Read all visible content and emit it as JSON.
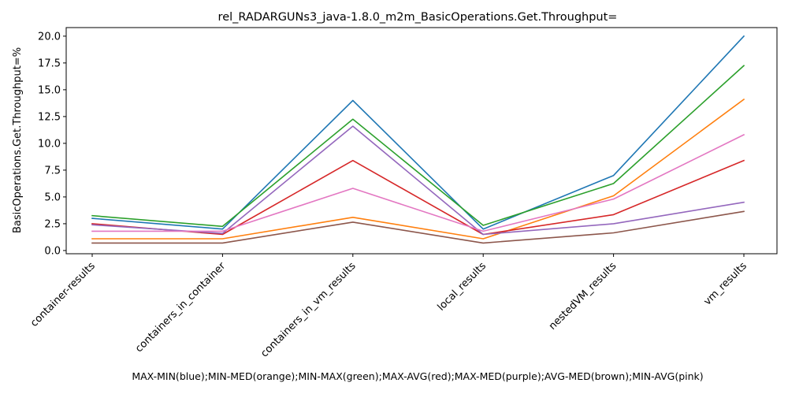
{
  "chart_data": {
    "type": "line",
    "title": "rel_RADARGUNs3_java-1.8.0_m2m_BasicOperations.Get.Throughput=",
    "xlabel": "MAX-MIN(blue);MIN-MED(orange);MIN-MAX(green);MAX-AVG(red);MAX-MED(purple);AVG-MED(brown);MIN-AVG(pink)",
    "ylabel": "BasicOperations.Get.Throughput=%",
    "categories": [
      "container-results",
      "containers_in_container",
      "containers_in_vm_results",
      "local_results",
      "nestedVM_results",
      "vm_results"
    ],
    "ylim": [
      -0.3,
      20.8
    ],
    "yticks": [
      "0.0",
      "2.5",
      "5.0",
      "7.5",
      "10.0",
      "12.5",
      "15.0",
      "17.5",
      "20.0"
    ],
    "ytick_values": [
      0,
      2.5,
      5,
      7.5,
      10,
      12.5,
      15,
      17.5,
      20
    ],
    "grid": false,
    "series": [
      {
        "color": "#1f77b4",
        "values": [
          3.0,
          2.0,
          14.0,
          2.0,
          7.0,
          20.0
        ]
      },
      {
        "color": "#ff7f0e",
        "values": [
          1.1,
          1.1,
          3.1,
          1.1,
          5.1,
          14.1
        ]
      },
      {
        "color": "#2ca02c",
        "values": [
          3.25,
          2.25,
          12.25,
          2.35,
          6.25,
          17.25
        ]
      },
      {
        "color": "#d62728",
        "values": [
          2.5,
          1.5,
          8.4,
          1.5,
          3.35,
          8.4
        ]
      },
      {
        "color": "#9467bd",
        "values": [
          2.4,
          1.6,
          11.6,
          1.5,
          2.5,
          4.5
        ]
      },
      {
        "color": "#8c564b",
        "values": [
          0.7,
          0.7,
          2.65,
          0.7,
          1.65,
          3.65
        ]
      },
      {
        "color": "#e377c2",
        "values": [
          1.8,
          1.8,
          5.8,
          1.8,
          4.8,
          10.8
        ]
      }
    ]
  }
}
